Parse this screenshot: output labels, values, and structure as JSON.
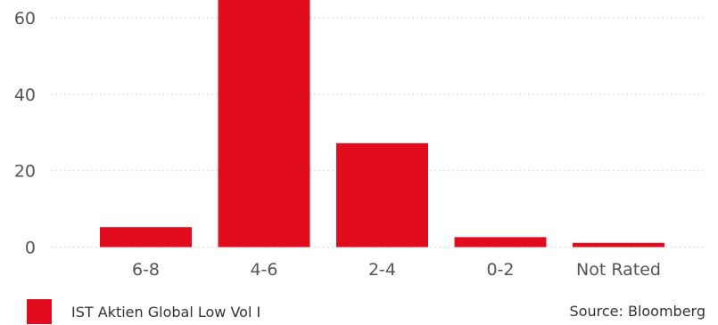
{
  "chart_data": {
    "type": "bar",
    "categories": [
      "6-8",
      "4-6",
      "2-4",
      "0-2",
      "Not Rated"
    ],
    "series": [
      {
        "name": "IST Aktien Global Low Vol I",
        "values": [
          5.2,
          68,
          27.2,
          2.6,
          1.1
        ]
      }
    ],
    "y_ticks": [
      0,
      20,
      40,
      60
    ],
    "ylim": [
      0,
      64
    ],
    "grid": true,
    "legend_position": "bottom-left",
    "bar_color": "#e20c1f"
  },
  "legend": {
    "label": "IST Aktien Global Low Vol I",
    "color": "#e20c1f"
  },
  "source": "Source: Bloomberg"
}
